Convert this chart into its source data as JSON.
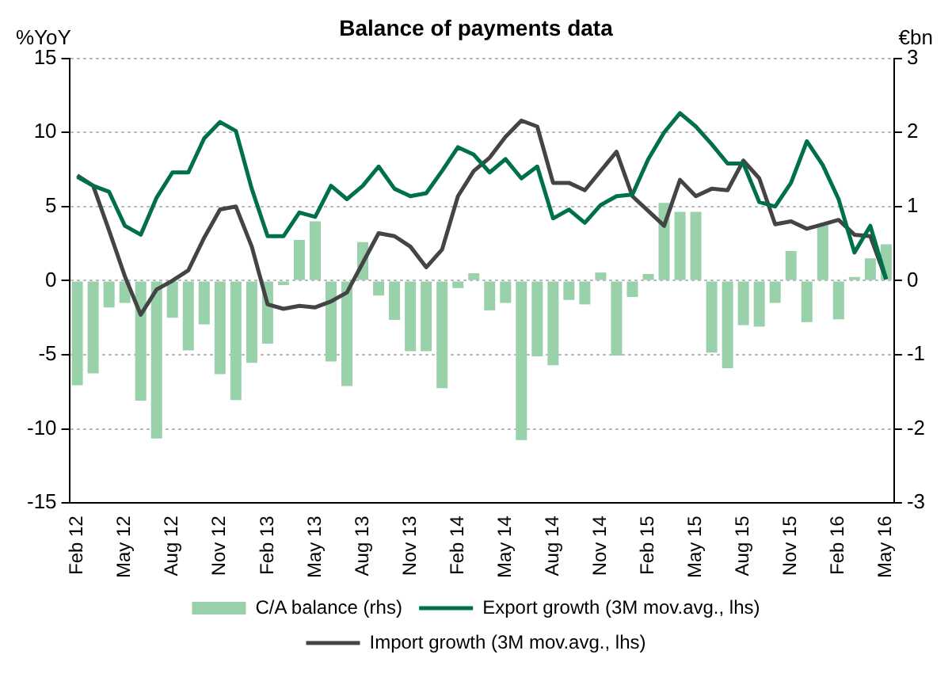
{
  "chart_data": {
    "type": "bar",
    "title": "Balance of payments data",
    "ylabel": "%YoY",
    "y2label": "€bn",
    "categories": [
      "Feb 12",
      null,
      null,
      "May 12",
      null,
      null,
      "Aug 12",
      null,
      null,
      "Nov 12",
      null,
      null,
      "Feb 13",
      null,
      null,
      "May 13",
      null,
      null,
      "Aug 13",
      null,
      null,
      "Nov 13",
      null,
      null,
      "Feb 14",
      null,
      null,
      "May 14",
      null,
      null,
      "Aug 14",
      null,
      null,
      "Nov 14",
      null,
      null,
      "Feb 15",
      null,
      null,
      "May 15",
      null,
      null,
      "Aug 15",
      null,
      null,
      "Nov 15",
      null,
      null,
      "Feb 16",
      null,
      null,
      "May 16"
    ],
    "series": [
      {
        "name": "C/A balance (rhs)",
        "axis": "y2",
        "color": "#99d1ab",
        "values": [
          -1.41,
          -1.25,
          -0.36,
          -0.3,
          -1.62,
          -2.13,
          -0.5,
          -0.94,
          -0.59,
          -1.26,
          -1.61,
          -1.11,
          -0.85,
          -0.06,
          0.55,
          0.8,
          -1.09,
          -1.42,
          0.52,
          -0.2,
          -0.53,
          -0.95,
          -0.95,
          -1.45,
          -0.1,
          0.1,
          -0.4,
          -0.3,
          -2.15,
          -1.02,
          -1.14,
          -0.26,
          -0.32,
          0.11,
          -1.01,
          -0.22,
          0.09,
          1.05,
          0.93,
          0.93,
          -0.97,
          -1.18,
          -0.6,
          -0.62,
          -0.3,
          0.4,
          -0.56,
          0.75,
          -0.52,
          0.05,
          0.3,
          0.49
        ]
      },
      {
        "name": "Export growth (3M mov.avg., lhs)",
        "type": "line",
        "color": "#00704a",
        "values": [
          7.0,
          6.4,
          6.0,
          3.7,
          3.1,
          5.6,
          7.3,
          7.3,
          9.6,
          10.7,
          10.1,
          6.2,
          3.0,
          3.0,
          4.6,
          4.3,
          6.4,
          5.5,
          6.4,
          7.7,
          6.2,
          5.7,
          5.9,
          7.4,
          9.0,
          8.5,
          7.3,
          8.2,
          6.9,
          7.7,
          4.2,
          4.8,
          3.9,
          5.1,
          5.7,
          5.8,
          8.2,
          10.0,
          11.3,
          10.4,
          9.2,
          7.9,
          7.9,
          5.3,
          5.0,
          6.6,
          9.4,
          7.8,
          5.5,
          1.9,
          3.7,
          0.1
        ]
      },
      {
        "name": "Import growth (3M mov.avg., lhs)",
        "type": "line",
        "color": "#444444",
        "values": [
          7.1,
          6.4,
          3.4,
          0.3,
          -2.3,
          -0.6,
          0.0,
          0.7,
          2.9,
          4.8,
          5.0,
          2.3,
          -1.6,
          -1.9,
          -1.7,
          -1.8,
          -1.4,
          -0.8,
          1.2,
          3.2,
          3.0,
          2.3,
          0.9,
          2.1,
          5.7,
          7.4,
          8.3,
          9.7,
          10.8,
          10.4,
          6.6,
          6.6,
          6.1,
          7.4,
          8.7,
          5.7,
          4.7,
          3.7,
          6.8,
          5.7,
          6.2,
          6.1,
          8.1,
          6.9,
          3.8,
          4.0,
          3.5,
          3.8,
          4.1,
          3.1,
          3.0,
          0.1
        ]
      }
    ],
    "ylim": [
      -15,
      15
    ],
    "yticks": [
      -15,
      -10,
      -5,
      0,
      5,
      10,
      15
    ],
    "y2lim": [
      -3,
      3
    ],
    "y2ticks": [
      -3,
      -2,
      -1,
      0,
      1,
      2,
      3
    ],
    "grid": "y",
    "legend": "bottom",
    "marker": "none",
    "line_style": "solid"
  }
}
